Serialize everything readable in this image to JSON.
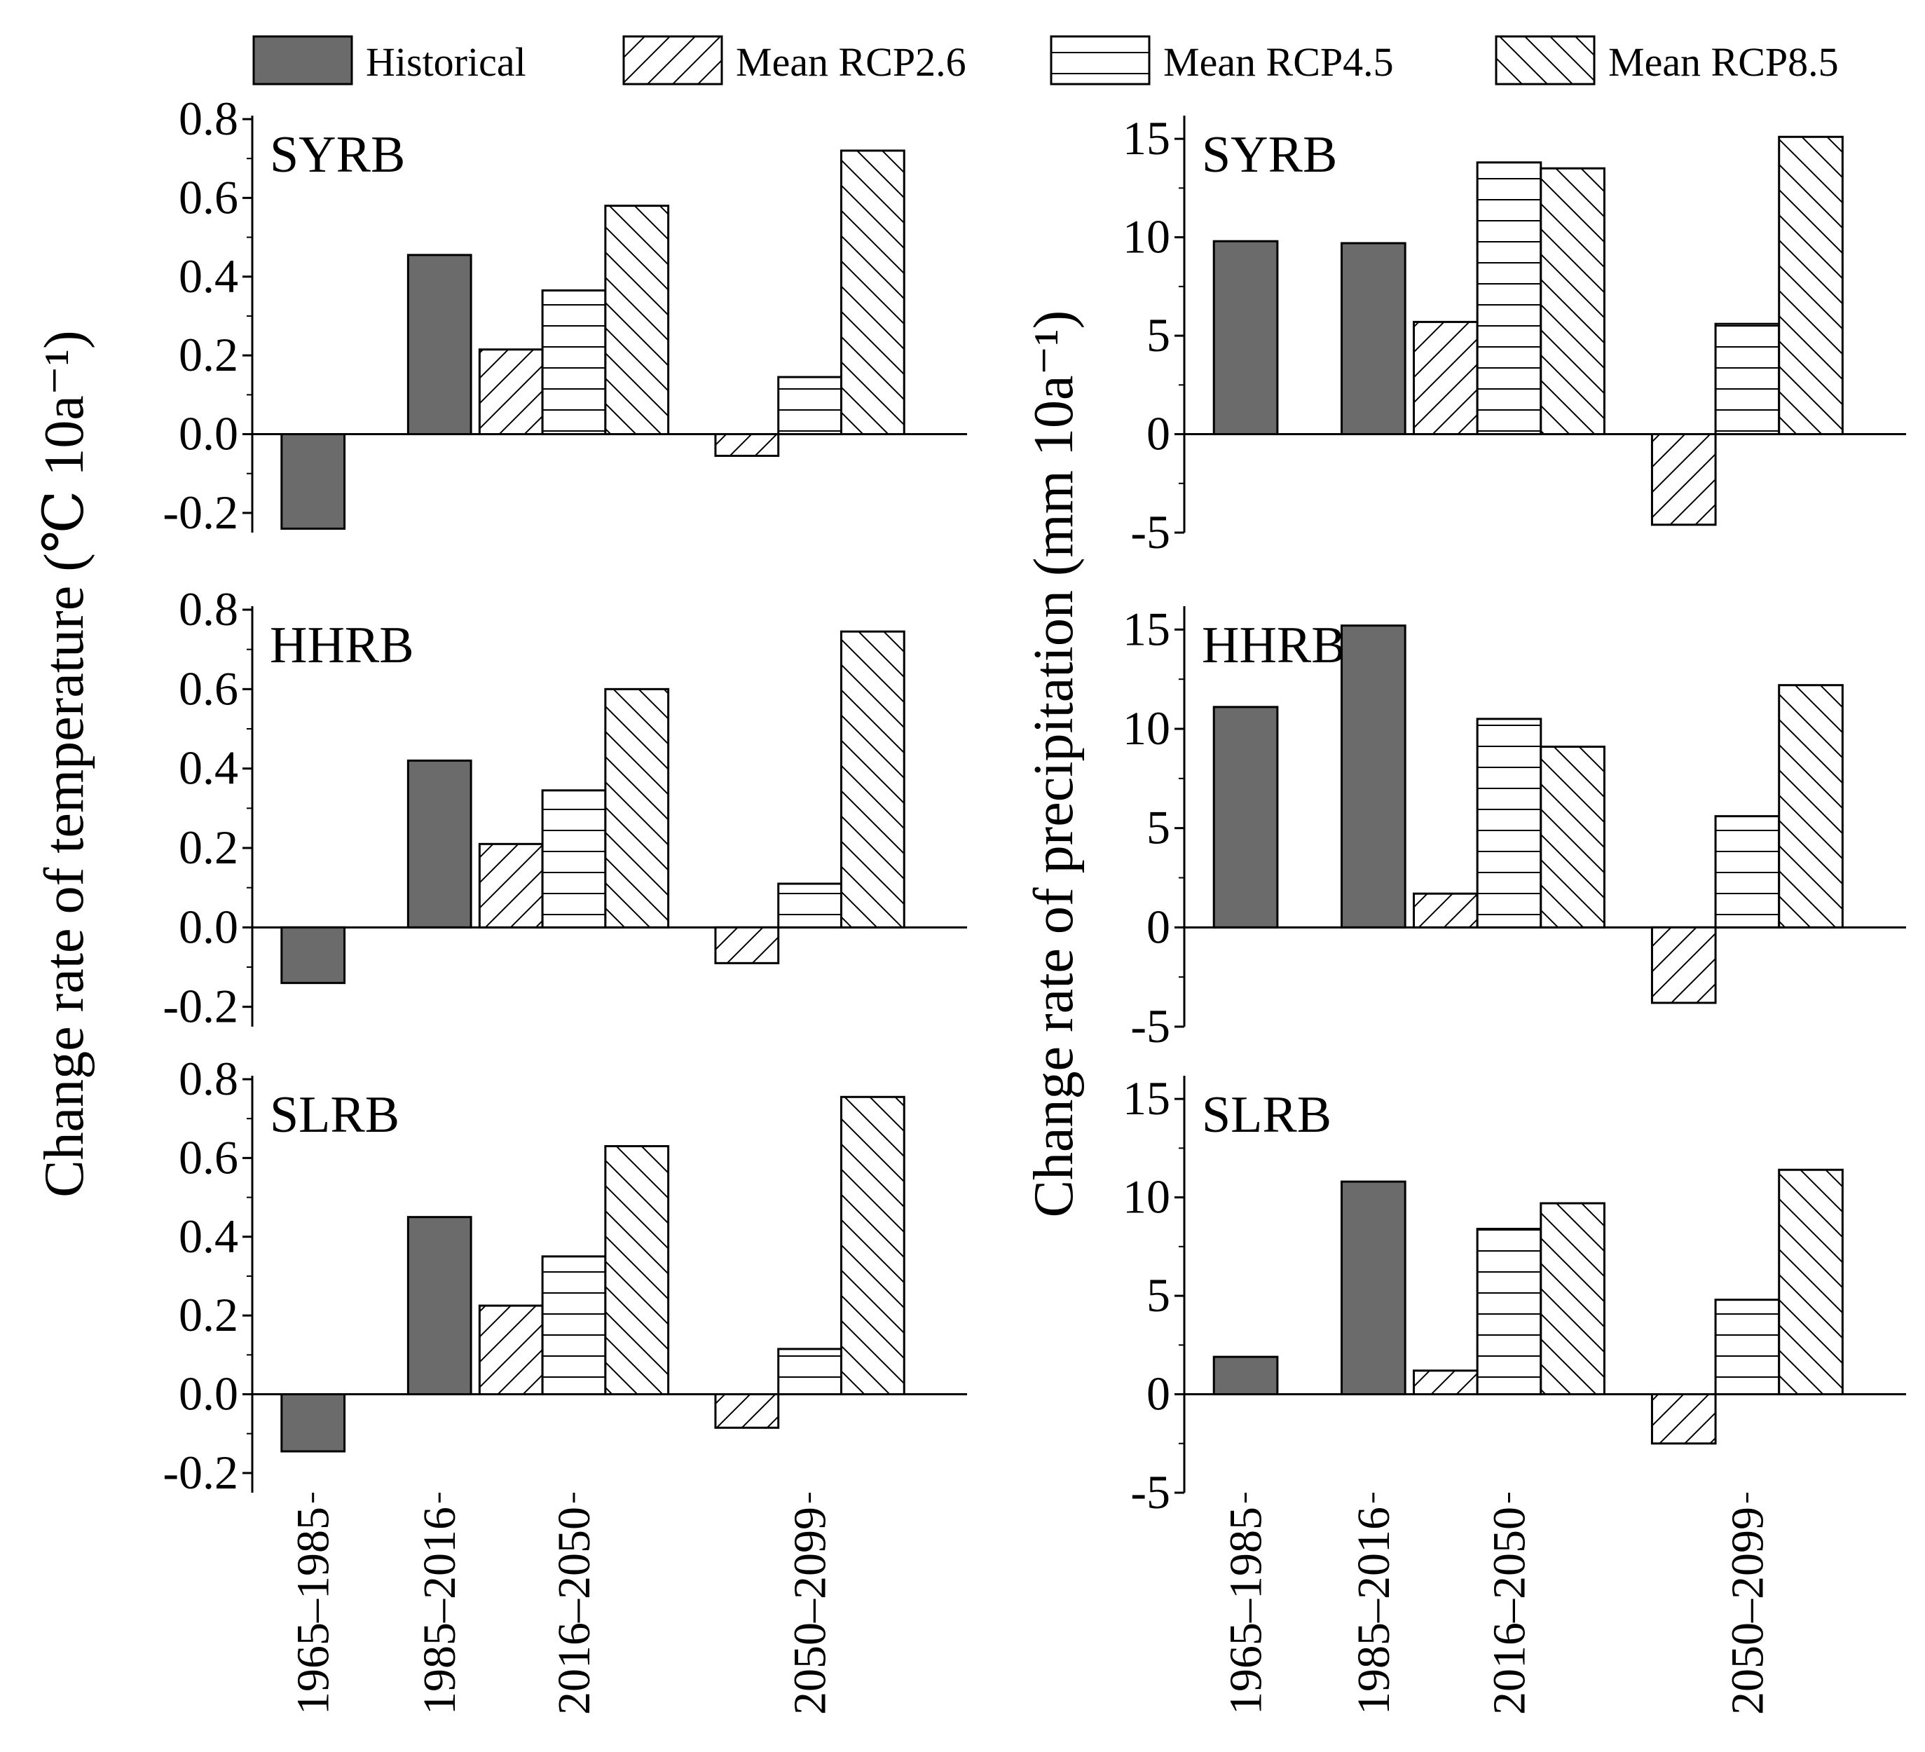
{
  "legend": [
    {
      "key": "historical",
      "label": "Historical",
      "fill": "#6b6b6b",
      "pattern": "solid"
    },
    {
      "key": "rcp26",
      "label": "Mean RCP2.6",
      "fill": "#ffffff",
      "pattern": "diag-up"
    },
    {
      "key": "rcp45",
      "label": "Mean RCP4.5",
      "fill": "#ffffff",
      "pattern": "horizontal"
    },
    {
      "key": "rcp85",
      "label": "Mean RCP8.5",
      "fill": "#ffffff",
      "pattern": "diag-down"
    }
  ],
  "colors": {
    "historical": "#6b6b6b",
    "outline": "#000000",
    "background": "#ffffff"
  },
  "axis_titles": {
    "temperature": "Change rate of temperature (℃ 10a⁻¹)",
    "precipitation": "Change rate of precipitation (mm 10a⁻¹)"
  },
  "chart_data": [
    {
      "type": "bar",
      "basin": "SYRB",
      "variable": "temperature",
      "ylim": [
        -0.25,
        0.8
      ],
      "yticks": [
        "0.8",
        "0.6",
        "0.4",
        "0.2",
        "0.0",
        "-0.2"
      ],
      "ytick_values": [
        0.8,
        0.6,
        0.4,
        0.2,
        0.0,
        -0.2
      ],
      "historical": [
        {
          "period": "1965–1985",
          "value": -0.24
        },
        {
          "period": "1985–2016",
          "value": 0.455
        }
      ],
      "scenarios": [
        {
          "period": "2016–2050",
          "rcp26": 0.215,
          "rcp45": 0.365,
          "rcp85": 0.58
        },
        {
          "period": "2050–2099",
          "rcp26": -0.055,
          "rcp45": 0.145,
          "rcp85": 0.72
        }
      ]
    },
    {
      "type": "bar",
      "basin": "HHRB",
      "variable": "temperature",
      "ylim": [
        -0.25,
        0.8
      ],
      "yticks": [
        "0.8",
        "0.6",
        "0.4",
        "0.2",
        "0.0",
        "-0.2"
      ],
      "ytick_values": [
        0.8,
        0.6,
        0.4,
        0.2,
        0.0,
        -0.2
      ],
      "historical": [
        {
          "period": "1965–1985",
          "value": -0.14
        },
        {
          "period": "1985–2016",
          "value": 0.42
        }
      ],
      "scenarios": [
        {
          "period": "2016–2050",
          "rcp26": 0.21,
          "rcp45": 0.345,
          "rcp85": 0.6
        },
        {
          "period": "2050–2099",
          "rcp26": -0.09,
          "rcp45": 0.11,
          "rcp85": 0.745
        }
      ]
    },
    {
      "type": "bar",
      "basin": "SLRB",
      "variable": "temperature",
      "ylim": [
        -0.25,
        0.8
      ],
      "yticks": [
        "0.8",
        "0.6",
        "0.4",
        "0.2",
        "0.0",
        "-0.2"
      ],
      "ytick_values": [
        0.8,
        0.6,
        0.4,
        0.2,
        0.0,
        -0.2
      ],
      "historical": [
        {
          "period": "1965–1985",
          "value": -0.145
        },
        {
          "period": "1985–2016",
          "value": 0.45
        }
      ],
      "scenarios": [
        {
          "period": "2016–2050",
          "rcp26": 0.225,
          "rcp45": 0.35,
          "rcp85": 0.63
        },
        {
          "period": "2050–2099",
          "rcp26": -0.085,
          "rcp45": 0.115,
          "rcp85": 0.755
        }
      ]
    },
    {
      "type": "bar",
      "basin": "SYRB",
      "variable": "precipitation",
      "ylim": [
        -5,
        16
      ],
      "yticks": [
        "15",
        "10",
        "5",
        "0",
        "-5"
      ],
      "ytick_values": [
        15,
        10,
        5,
        0,
        -5
      ],
      "historical": [
        {
          "period": "1965–1985",
          "value": 9.8
        },
        {
          "period": "1985–2016",
          "value": 9.7
        }
      ],
      "scenarios": [
        {
          "period": "2016–2050",
          "rcp26": 5.7,
          "rcp45": 13.8,
          "rcp85": 13.5
        },
        {
          "period": "2050–2099",
          "rcp26": -4.6,
          "rcp45": 5.6,
          "rcp85": 15.1
        }
      ]
    },
    {
      "type": "bar",
      "basin": "HHRB",
      "variable": "precipitation",
      "ylim": [
        -5,
        16
      ],
      "yticks": [
        "15",
        "10",
        "5",
        "0",
        "-5"
      ],
      "ytick_values": [
        15,
        10,
        5,
        0,
        -5
      ],
      "historical": [
        {
          "period": "1965–1985",
          "value": 11.1
        },
        {
          "period": "1985–2016",
          "value": 15.2
        }
      ],
      "scenarios": [
        {
          "period": "2016–2050",
          "rcp26": 1.7,
          "rcp45": 10.5,
          "rcp85": 9.1
        },
        {
          "period": "2050–2099",
          "rcp26": -3.8,
          "rcp45": 5.6,
          "rcp85": 12.2
        }
      ]
    },
    {
      "type": "bar",
      "basin": "SLRB",
      "variable": "precipitation",
      "ylim": [
        -5,
        16
      ],
      "yticks": [
        "15",
        "10",
        "5",
        "0",
        "-5"
      ],
      "ytick_values": [
        15,
        10,
        5,
        0,
        -5
      ],
      "historical": [
        {
          "period": "1965–1985",
          "value": 1.9
        },
        {
          "period": "1985–2016",
          "value": 10.8
        }
      ],
      "scenarios": [
        {
          "period": "2016–2050",
          "rcp26": 1.2,
          "rcp45": 8.4,
          "rcp85": 9.7
        },
        {
          "period": "2050–2099",
          "rcp26": -2.5,
          "rcp45": 4.8,
          "rcp85": 11.4
        }
      ]
    }
  ],
  "x_categories": [
    "1965–1985",
    "1985–2016",
    "2016–2050",
    "2050–2099"
  ]
}
